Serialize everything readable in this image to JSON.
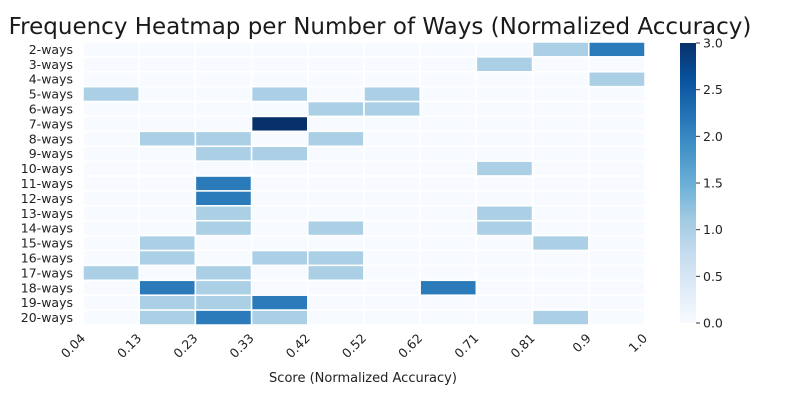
{
  "chart_data": {
    "type": "heatmap",
    "title": "Frequency Heatmap per Number of Ways (Normalized Accuracy)",
    "xlabel": "Score (Normalized Accuracy)",
    "ylabel": "",
    "x_ticks": [
      "0.04",
      "0.13",
      "0.23",
      "0.33",
      "0.42",
      "0.52",
      "0.62",
      "0.71",
      "0.81",
      "0.9",
      "1.0"
    ],
    "rows": [
      "2-ways",
      "3-ways",
      "4-ways",
      "5-ways",
      "6-ways",
      "7-ways",
      "8-ways",
      "9-ways",
      "10-ways",
      "11-ways",
      "12-ways",
      "13-ways",
      "14-ways",
      "15-ways",
      "16-ways",
      "17-ways",
      "18-ways",
      "19-ways",
      "20-ways"
    ],
    "values": [
      [
        0,
        0,
        0,
        0,
        0,
        0,
        0,
        0,
        1,
        2
      ],
      [
        0,
        0,
        0,
        0,
        0,
        0,
        0,
        1,
        0,
        0
      ],
      [
        0,
        0,
        0,
        0,
        0,
        0,
        0,
        0,
        0,
        1
      ],
      [
        1,
        0,
        0,
        1,
        0,
        1,
        0,
        0,
        0,
        0
      ],
      [
        0,
        0,
        0,
        0,
        1,
        1,
        0,
        0,
        0,
        0
      ],
      [
        0,
        0,
        0,
        3,
        0,
        0,
        0,
        0,
        0,
        0
      ],
      [
        0,
        1,
        1,
        0,
        1,
        0,
        0,
        0,
        0,
        0
      ],
      [
        0,
        0,
        1,
        1,
        0,
        0,
        0,
        0,
        0,
        0
      ],
      [
        0,
        0,
        0,
        0,
        0,
        0,
        0,
        1,
        0,
        0
      ],
      [
        0,
        0,
        2,
        0,
        0,
        0,
        0,
        0,
        0,
        0
      ],
      [
        0,
        0,
        2,
        0,
        0,
        0,
        0,
        0,
        0,
        0
      ],
      [
        0,
        0,
        1,
        0,
        0,
        0,
        0,
        1,
        0,
        0
      ],
      [
        0,
        0,
        1,
        0,
        1,
        0,
        0,
        1,
        0,
        0
      ],
      [
        0,
        1,
        0,
        0,
        0,
        0,
        0,
        0,
        1,
        0
      ],
      [
        0,
        1,
        0,
        1,
        1,
        0,
        0,
        0,
        0,
        0
      ],
      [
        1,
        0,
        1,
        0,
        1,
        0,
        0,
        0,
        0,
        0
      ],
      [
        0,
        2,
        1,
        0,
        0,
        0,
        2,
        0,
        0,
        0
      ],
      [
        0,
        1,
        1,
        2,
        0,
        0,
        0,
        0,
        0,
        0
      ],
      [
        0,
        1,
        2,
        1,
        0,
        0,
        0,
        0,
        1,
        0
      ]
    ],
    "colorbar": {
      "min": 0.0,
      "max": 3.0,
      "ticks": [
        "0.0",
        "0.5",
        "1.0",
        "1.5",
        "2.0",
        "2.5",
        "3.0"
      ],
      "colormap": "Blues"
    },
    "colors": {
      "0": "#f7fbff",
      "1": "#abd0e6",
      "2": "#2b7bba",
      "3": "#08306b"
    },
    "grid": false,
    "cell_border_color": "#ffffff"
  }
}
